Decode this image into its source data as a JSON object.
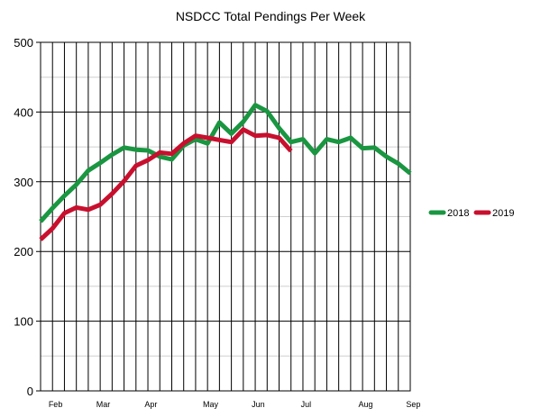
{
  "chart_data": {
    "type": "line",
    "title": "NSDCC Total Pendings Per Week",
    "xlabel": "",
    "ylabel": "",
    "ylim": [
      0,
      500
    ],
    "yticks": [
      0,
      100,
      200,
      300,
      400,
      500
    ],
    "x_count": 32,
    "month_ticks": [
      {
        "label": "Feb",
        "index": 0.8
      },
      {
        "label": "Mar",
        "index": 4.8
      },
      {
        "label": "Apr",
        "index": 8.8
      },
      {
        "label": "May",
        "index": 13.8
      },
      {
        "label": "Jun",
        "index": 17.8
      },
      {
        "label": "Jul",
        "index": 21.8
      },
      {
        "label": "Aug",
        "index": 26.8
      },
      {
        "label": "Sep",
        "index": 30.8
      }
    ],
    "grid": true,
    "legend_position": "right",
    "series": [
      {
        "name": "2018",
        "color": "#1a9641",
        "values": [
          243,
          262,
          280,
          296,
          316,
          327,
          339,
          349,
          346,
          345,
          336,
          332,
          352,
          361,
          355,
          385,
          369,
          386,
          410,
          401,
          377,
          357,
          361,
          341,
          361,
          357,
          363,
          348,
          349,
          336,
          326,
          312
        ]
      },
      {
        "name": "2019",
        "color": "#c8102e",
        "values": [
          217,
          233,
          255,
          263,
          260,
          267,
          283,
          301,
          323,
          331,
          342,
          340,
          355,
          366,
          363,
          360,
          357,
          375,
          366,
          367,
          363,
          344
        ]
      }
    ]
  }
}
